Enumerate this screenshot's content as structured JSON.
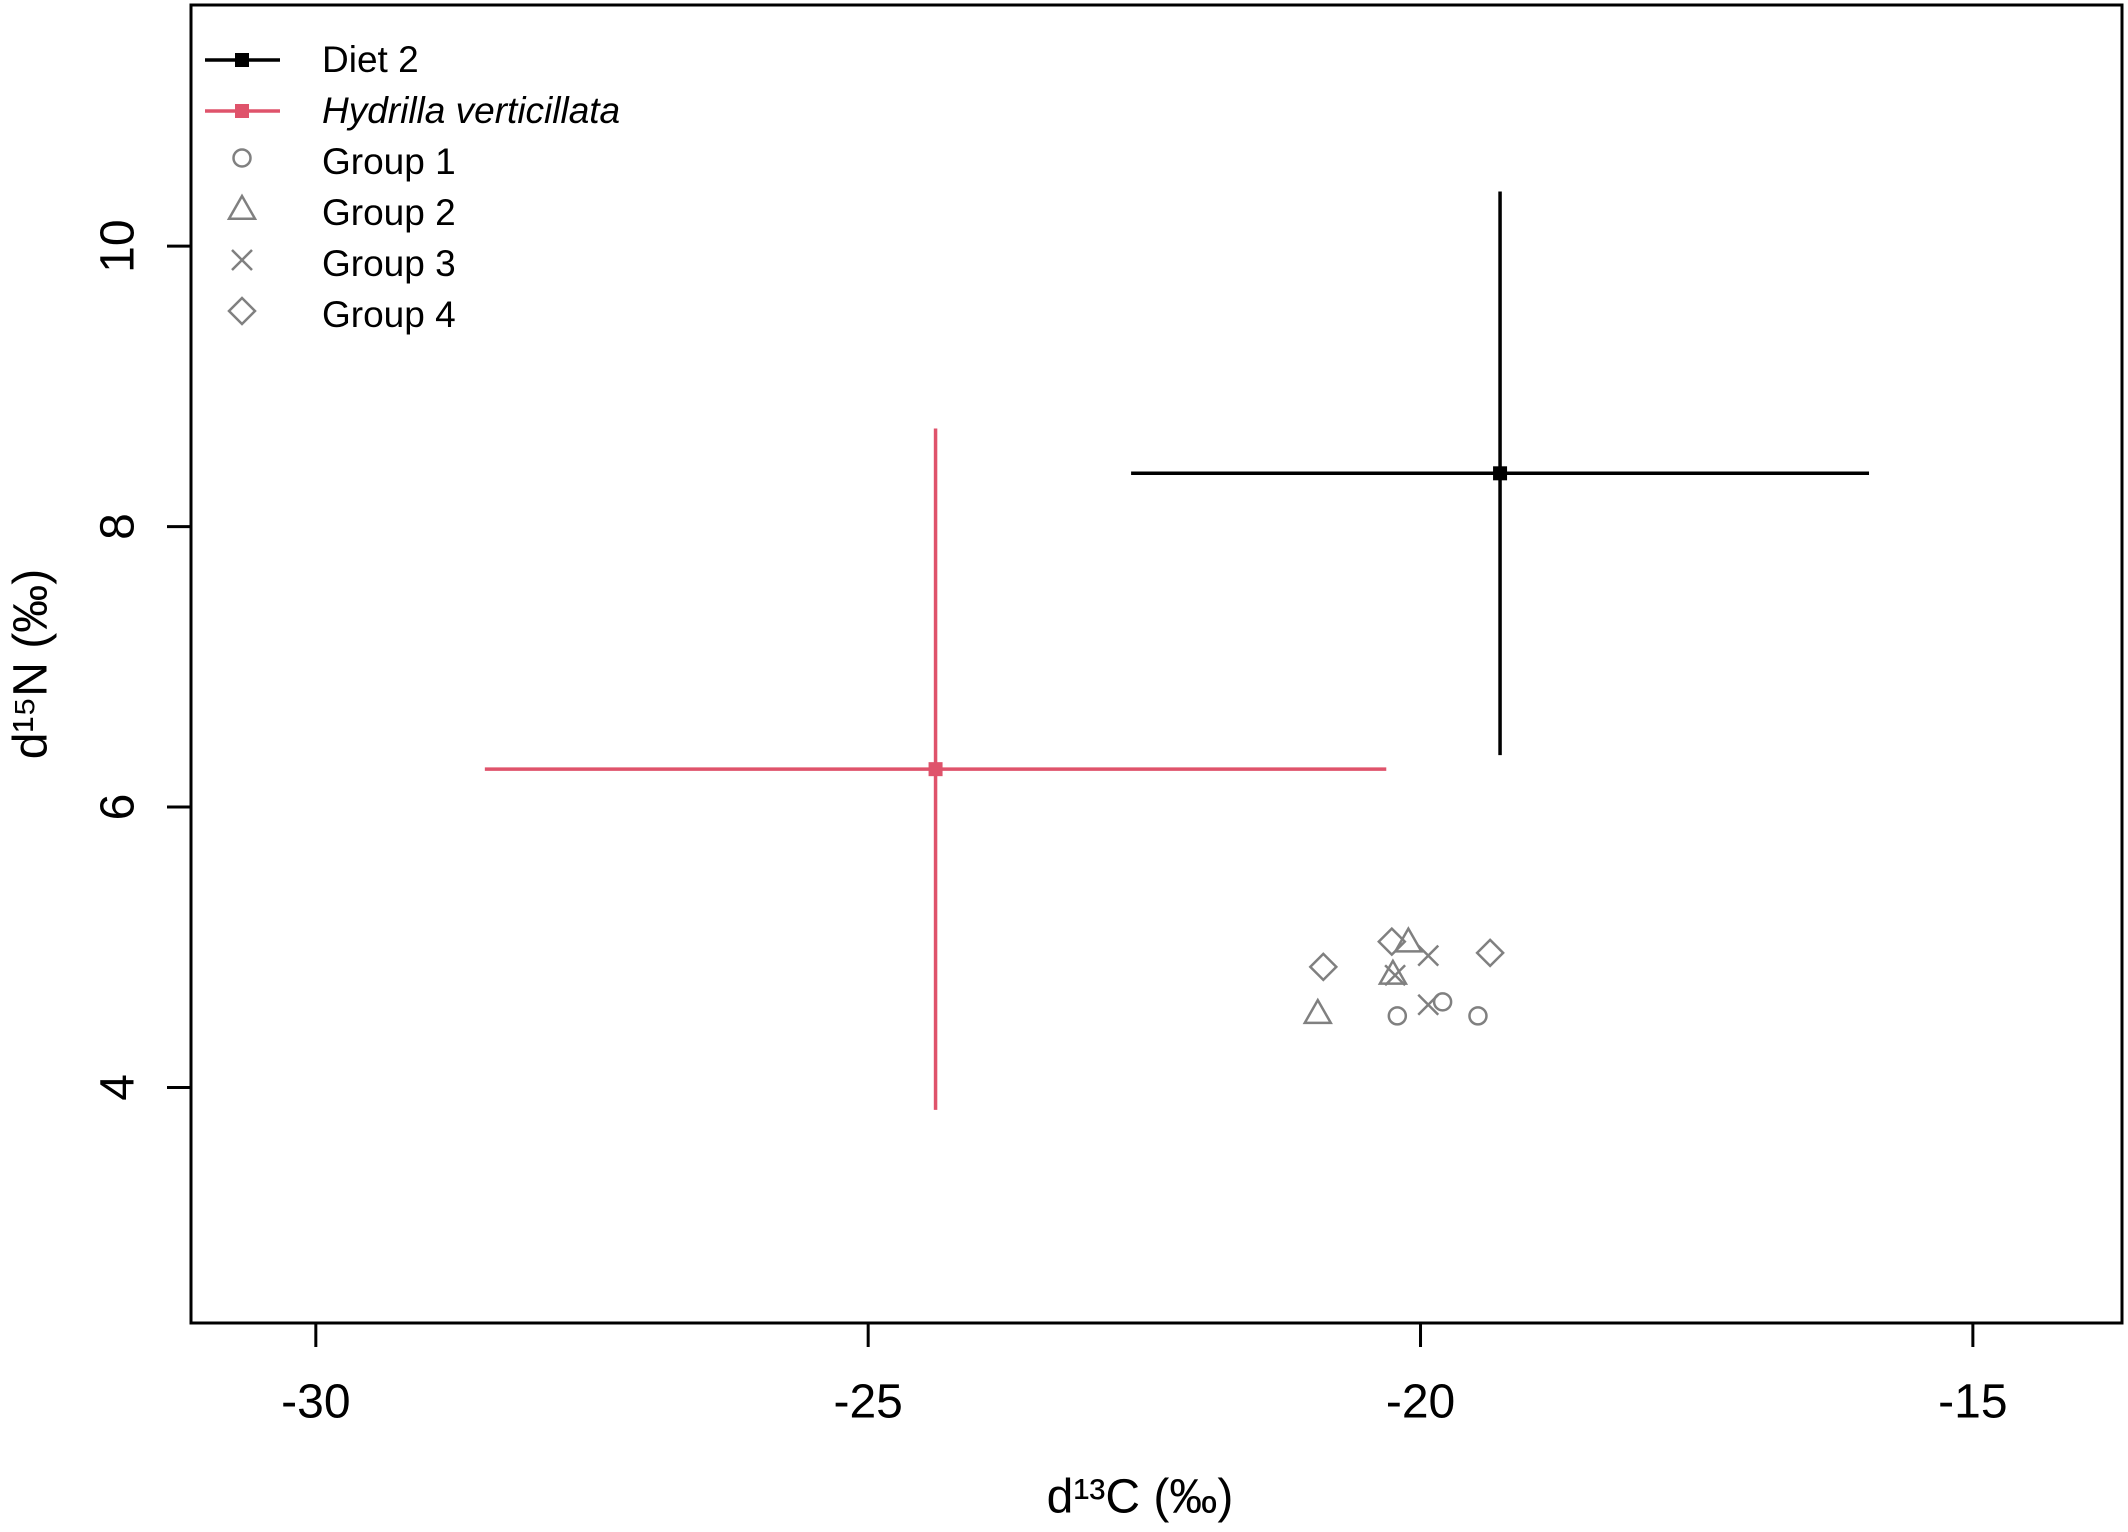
{
  "chart_data": {
    "type": "scatter",
    "x_label": "d¹³C (‰)",
    "y_label": "d¹⁵N (‰)",
    "xlim": [
      -31.13,
      -13.65
    ],
    "ylim": [
      2.32,
      11.72
    ],
    "xticks": [
      -30,
      -25,
      -20,
      -15
    ],
    "yticks": [
      4,
      6,
      8,
      10
    ],
    "legend": "top-left",
    "series": [
      {
        "name": "Diet 2",
        "color": "#000000",
        "marker": "square",
        "x": [
          -19.28
        ],
        "y": [
          8.38
        ],
        "xerr": [
          3.34
        ],
        "yerr": [
          2.01
        ]
      },
      {
        "name": "Hydrilla verticillata",
        "color": "#df536b",
        "marker": "square",
        "label_style": "italic",
        "x": [
          -24.39
        ],
        "y": [
          6.27
        ],
        "xerr": [
          4.08
        ],
        "yerr": [
          2.43
        ]
      },
      {
        "name": "Group 1",
        "color": "#808080",
        "marker": "circle",
        "x": [
          -20.21,
          -19.8,
          -19.48
        ],
        "y": [
          4.51,
          4.61,
          4.51
        ]
      },
      {
        "name": "Group 2",
        "color": "#808080",
        "marker": "triangle",
        "x": [
          -20.93,
          -20.25,
          -20.11
        ],
        "y": [
          4.53,
          4.81,
          5.04
        ]
      },
      {
        "name": "Group 3",
        "color": "#808080",
        "marker": "cross",
        "x": [
          -20.23,
          -19.93,
          -19.93
        ],
        "y": [
          4.8,
          4.94,
          4.59
        ]
      },
      {
        "name": "Group 4",
        "color": "#808080",
        "marker": "diamond",
        "x": [
          -20.88,
          -20.26,
          -19.37
        ],
        "y": [
          4.86,
          5.04,
          4.96
        ]
      }
    ]
  }
}
